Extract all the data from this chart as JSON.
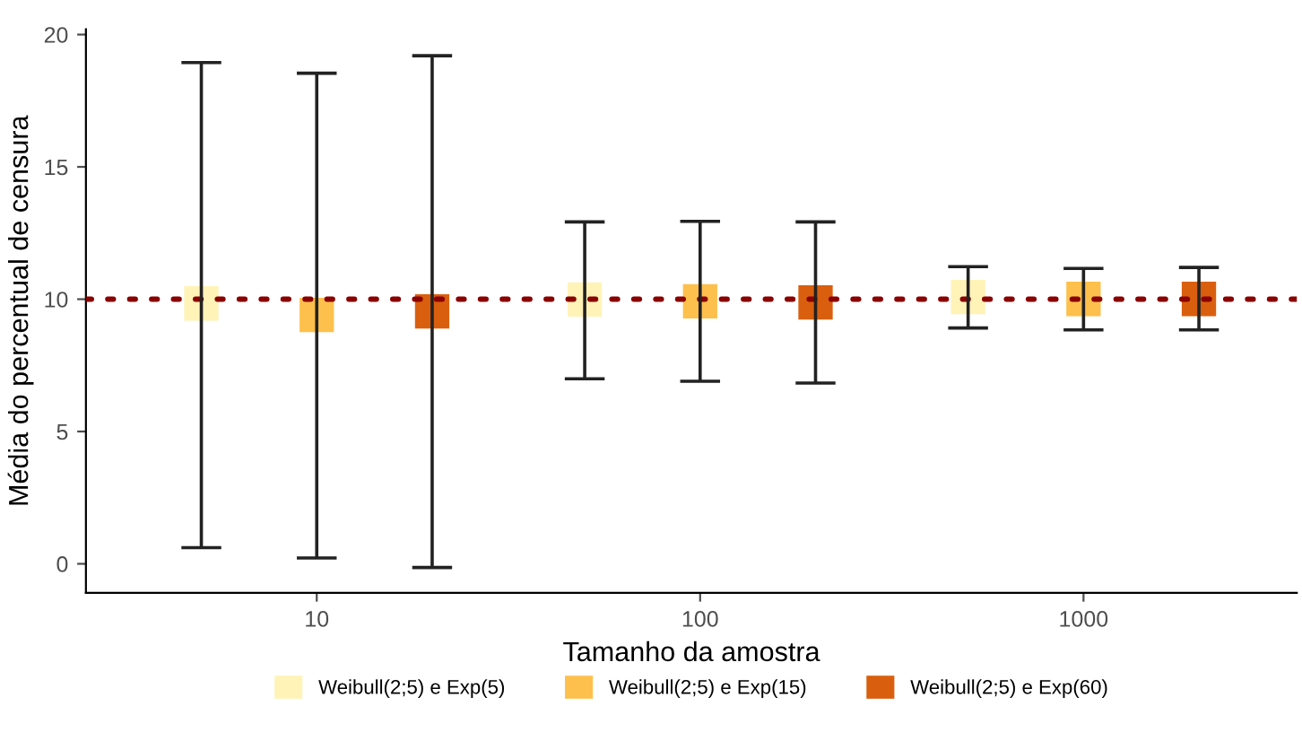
{
  "chart_data": {
    "type": "scatter",
    "xlabel": "Tamanho da amostra",
    "ylabel": "Média do percentual de censura",
    "log": "x",
    "xlim": [
      2.5,
      3600
    ],
    "xticks": [
      10,
      100,
      1000
    ],
    "ylim": [
      -1.1,
      20.2
    ],
    "yticks": [
      0,
      5,
      10,
      15,
      20
    ],
    "grid": false,
    "legend": "bottom",
    "marker": "square",
    "series": [
      {
        "name": "Weibull(2;5) e Exp(5)",
        "color": "#fff3b8",
        "x": [
          5,
          50,
          500
        ],
        "values": [
          9.84,
          9.99,
          10.08
        ],
        "errors": [
          [
            0.61,
            18.94
          ],
          [
            6.99,
            12.92
          ],
          [
            8.91,
            11.23
          ]
        ]
      },
      {
        "name": "Weibull(2;5) e Exp(15)",
        "color": "#fdc04c",
        "x": [
          10,
          100,
          1000
        ],
        "values": [
          9.4,
          9.92,
          10.01
        ],
        "errors": [
          [
            0.22,
            18.54
          ],
          [
            6.9,
            12.94
          ],
          [
            8.84,
            11.16
          ]
        ]
      },
      {
        "name": "Weibull(2;5) e Exp(60)",
        "color": "#d95f0e",
        "x": [
          20,
          200,
          2000
        ],
        "values": [
          9.54,
          9.88,
          10.01
        ],
        "errors": [
          [
            -0.14,
            19.2
          ],
          [
            6.83,
            12.92
          ],
          [
            8.84,
            11.2
          ]
        ]
      }
    ],
    "ref_lines": [
      {
        "axis": "y",
        "value": 10,
        "color": "#8b0000",
        "line_style": "dotted"
      }
    ]
  }
}
